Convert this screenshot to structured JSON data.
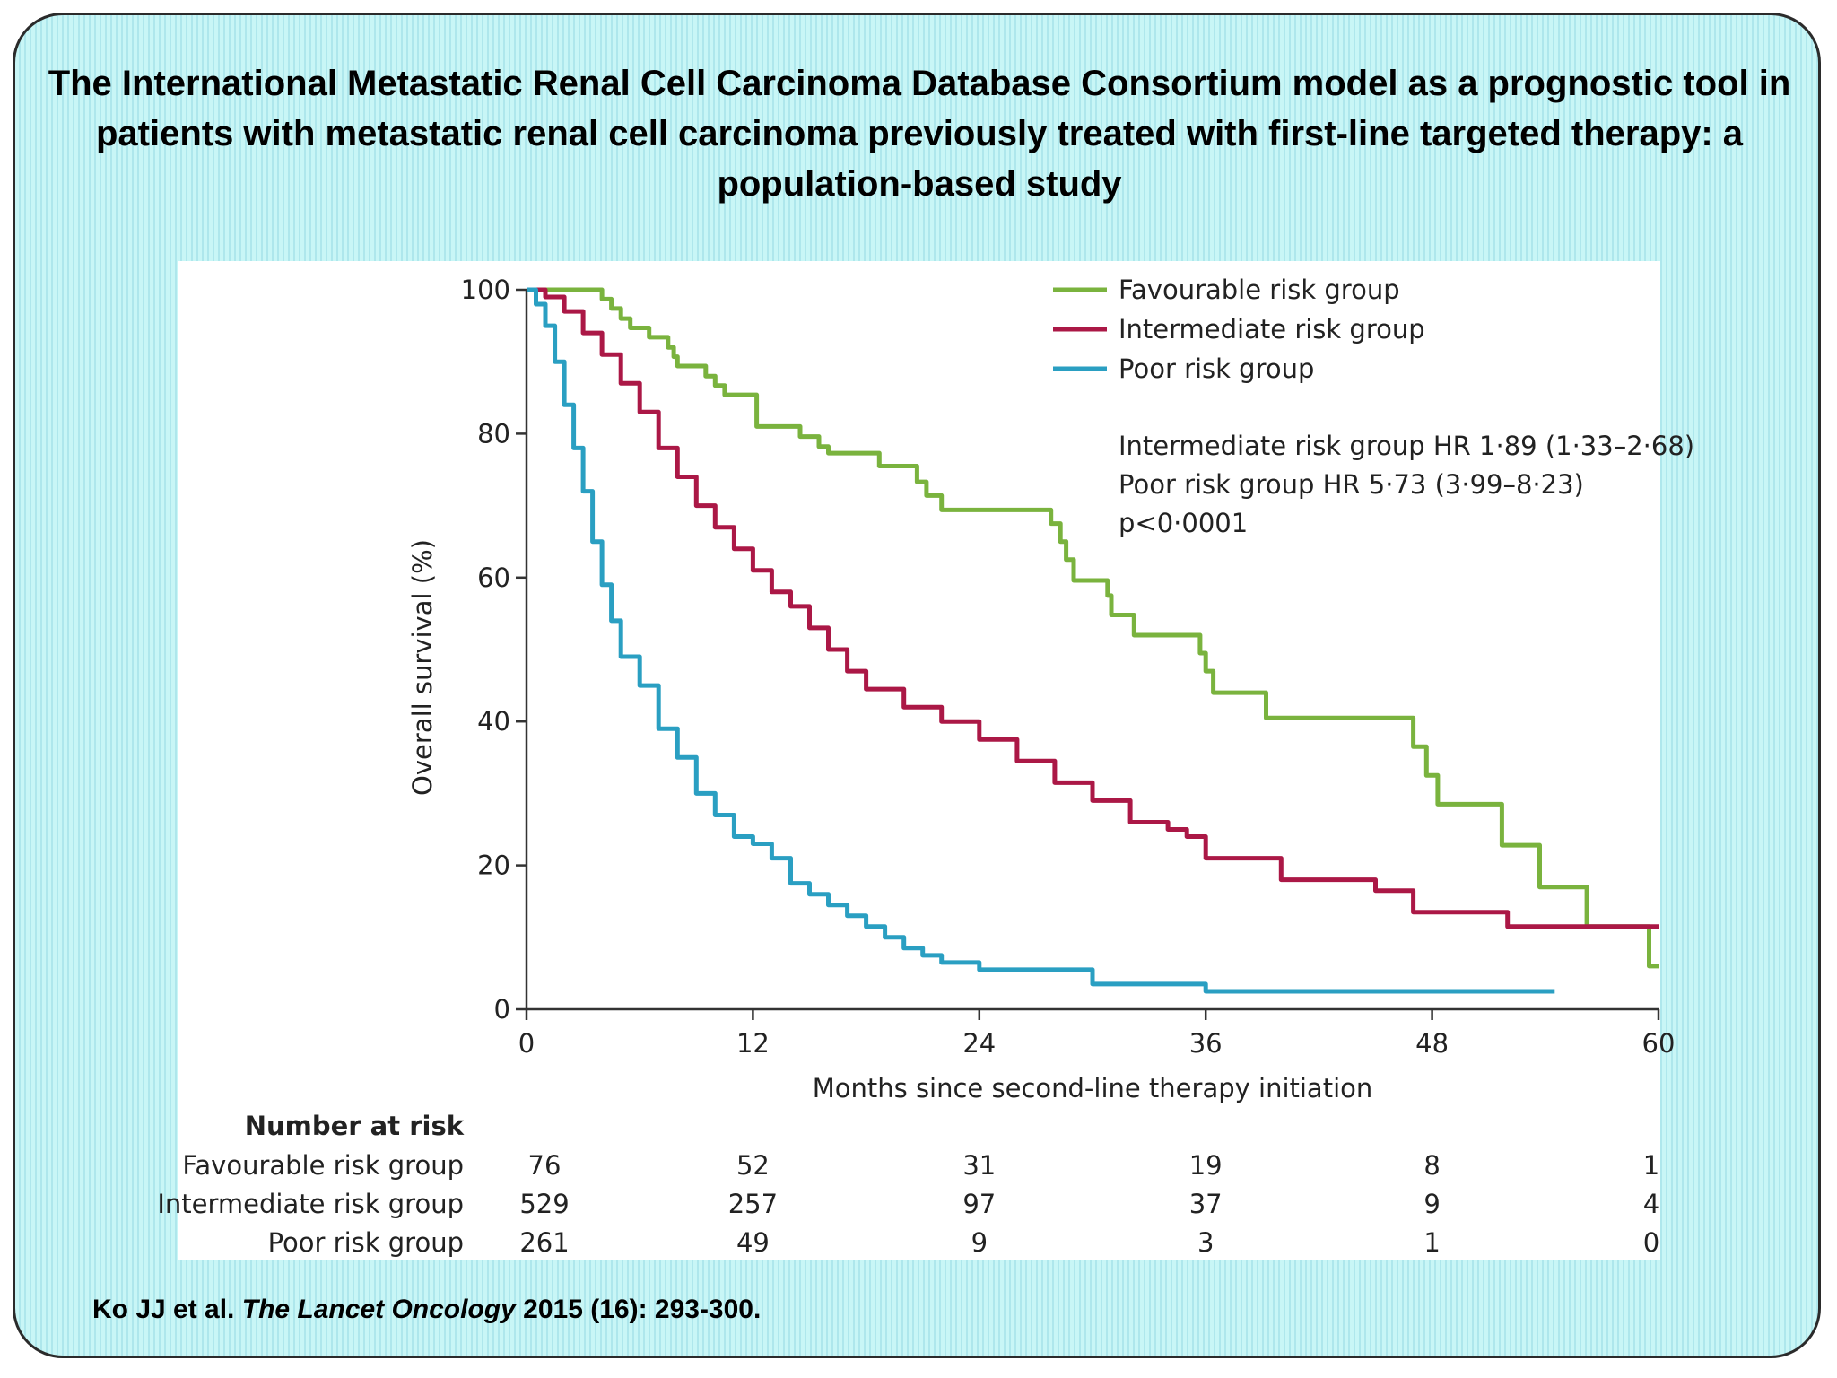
{
  "slide": {
    "title": "The International Metastatic Renal Cell Carcinoma Database Consortium model as a prognostic tool in patients with metastatic renal cell carcinoma previously treated with first-line targeted therapy: a population-based study",
    "citation": {
      "authors": "Ko JJ et al.",
      "journal": "The Lancet Oncology",
      "details": "2015 (16): 293-300."
    },
    "background_colors": [
      "#c8f6f6",
      "#aee7ec"
    ]
  },
  "chart_data": {
    "type": "line",
    "step": true,
    "xlabel": "Months since second-line therapy initiation",
    "ylabel": "Overall survival (%)",
    "xlim": [
      0,
      60
    ],
    "ylim": [
      0,
      100
    ],
    "xticks": [
      0,
      12,
      24,
      36,
      48,
      60
    ],
    "yticks": [
      0,
      20,
      40,
      60,
      80,
      100
    ],
    "legend_position": "top-right",
    "series": [
      {
        "name": "Favourable risk group",
        "color": "#7ab33e",
        "points": [
          [
            0,
            100
          ],
          [
            3.5,
            100
          ],
          [
            4,
            98.7
          ],
          [
            4.5,
            97.4
          ],
          [
            5,
            96
          ],
          [
            5.5,
            94.7
          ],
          [
            6.5,
            93.4
          ],
          [
            7.5,
            92
          ],
          [
            7.8,
            90.7
          ],
          [
            8,
            89.4
          ],
          [
            9.5,
            88
          ],
          [
            10,
            86.7
          ],
          [
            10.5,
            85.4
          ],
          [
            12,
            85.4
          ],
          [
            12.2,
            81
          ],
          [
            14.5,
            79.6
          ],
          [
            15.5,
            78.2
          ],
          [
            16,
            77.3
          ],
          [
            18.5,
            77.3
          ],
          [
            18.7,
            75.5
          ],
          [
            20.5,
            75.5
          ],
          [
            20.7,
            73.3
          ],
          [
            21.2,
            71.4
          ],
          [
            22,
            69.4
          ],
          [
            27.5,
            69.4
          ],
          [
            27.8,
            67.5
          ],
          [
            28.3,
            65
          ],
          [
            28.6,
            62.5
          ],
          [
            29,
            59.6
          ],
          [
            30.5,
            59.6
          ],
          [
            30.8,
            57.5
          ],
          [
            31,
            54.8
          ],
          [
            32,
            54.8
          ],
          [
            32.2,
            52
          ],
          [
            35.5,
            52
          ],
          [
            35.7,
            49.5
          ],
          [
            36,
            47
          ],
          [
            36.4,
            44
          ],
          [
            39,
            44
          ],
          [
            39.2,
            40.5
          ],
          [
            46.7,
            40.5
          ],
          [
            47,
            36.5
          ],
          [
            47.7,
            32.5
          ],
          [
            48.3,
            28.5
          ],
          [
            51.5,
            28.5
          ],
          [
            51.7,
            22.8
          ],
          [
            53.5,
            22.8
          ],
          [
            53.7,
            17
          ],
          [
            56,
            17
          ],
          [
            56.2,
            11.5
          ],
          [
            59.5,
            11.5
          ],
          [
            59.5,
            6
          ],
          [
            60,
            6
          ]
        ]
      },
      {
        "name": "Intermediate risk group",
        "color": "#ab1846",
        "points": [
          [
            0,
            100
          ],
          [
            1,
            99
          ],
          [
            2,
            97
          ],
          [
            3,
            94
          ],
          [
            4,
            91
          ],
          [
            5,
            87
          ],
          [
            6,
            83
          ],
          [
            7,
            78
          ],
          [
            8,
            74
          ],
          [
            9,
            70
          ],
          [
            10,
            67
          ],
          [
            11,
            64
          ],
          [
            12,
            61
          ],
          [
            13,
            58
          ],
          [
            14,
            56
          ],
          [
            15,
            53
          ],
          [
            16,
            50
          ],
          [
            17,
            47
          ],
          [
            18,
            44.5
          ],
          [
            20,
            42
          ],
          [
            22,
            40
          ],
          [
            24,
            37.5
          ],
          [
            26,
            34.5
          ],
          [
            28,
            31.5
          ],
          [
            30,
            29
          ],
          [
            32,
            26
          ],
          [
            34,
            25
          ],
          [
            35,
            24
          ],
          [
            36,
            21
          ],
          [
            40,
            18
          ],
          [
            45,
            16.5
          ],
          [
            47,
            13.5
          ],
          [
            52,
            11.5
          ],
          [
            60,
            11.5
          ]
        ]
      },
      {
        "name": "Poor risk group",
        "color": "#2a9fc2",
        "points": [
          [
            0,
            100
          ],
          [
            0.5,
            98
          ],
          [
            1,
            95
          ],
          [
            1.5,
            90
          ],
          [
            2,
            84
          ],
          [
            2.5,
            78
          ],
          [
            3,
            72
          ],
          [
            3.5,
            65
          ],
          [
            4,
            59
          ],
          [
            4.5,
            54
          ],
          [
            5,
            49
          ],
          [
            6,
            45
          ],
          [
            7,
            39
          ],
          [
            8,
            35
          ],
          [
            9,
            30
          ],
          [
            10,
            27
          ],
          [
            11,
            24
          ],
          [
            12,
            23
          ],
          [
            13,
            21
          ],
          [
            14,
            17.5
          ],
          [
            15,
            16
          ],
          [
            16,
            14.5
          ],
          [
            17,
            13
          ],
          [
            18,
            11.5
          ],
          [
            19,
            10
          ],
          [
            20,
            8.5
          ],
          [
            21,
            7.5
          ],
          [
            22,
            6.5
          ],
          [
            24,
            5.5
          ],
          [
            28,
            5.5
          ],
          [
            30,
            3.5
          ],
          [
            36,
            2.5
          ],
          [
            54.5,
            2.5
          ]
        ]
      }
    ],
    "annotations": [
      "Intermediate risk group HR 1·89 (1·33–2·68)",
      "Poor risk group HR 5·73 (3·99–8·23)",
      "p<0·0001"
    ],
    "risk_table": {
      "title": "Number at risk",
      "timepoints": [
        0,
        12,
        24,
        36,
        48,
        60
      ],
      "rows": [
        {
          "label": "Favourable risk group",
          "values": [
            "76",
            "52",
            "31",
            "19",
            "8",
            "1"
          ]
        },
        {
          "label": "Intermediate risk group",
          "values": [
            "529",
            "257",
            "97",
            "37",
            "9",
            "4"
          ]
        },
        {
          "label": "Poor risk group",
          "values": [
            "261",
            "49",
            "9",
            "3",
            "1",
            "0"
          ]
        }
      ]
    }
  }
}
